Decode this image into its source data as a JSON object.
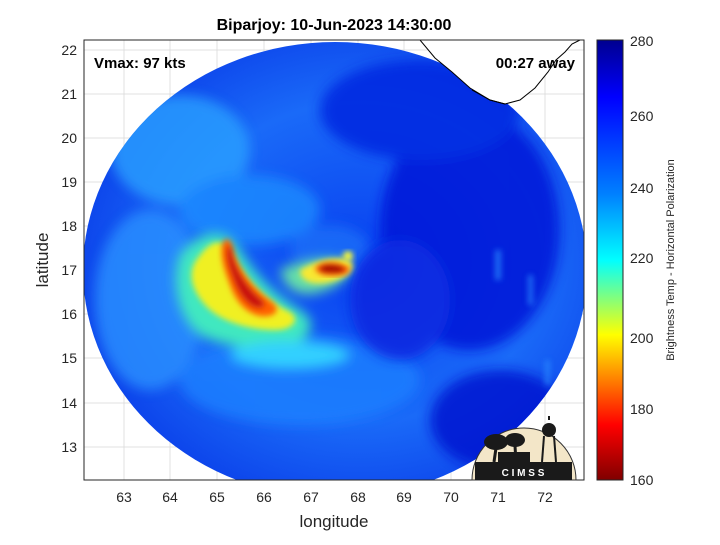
{
  "title": "Biparjoy: 10-Jun-2023 14:30:00",
  "vmax_label": "Vmax: 97 kts",
  "time_away_label": "00:27 away",
  "xaxis": {
    "label": "longitude",
    "ticks": [
      "63",
      "64",
      "65",
      "66",
      "67",
      "68",
      "69",
      "70",
      "71",
      "72"
    ]
  },
  "yaxis": {
    "label": "latitude",
    "ticks": [
      "13",
      "14",
      "15",
      "16",
      "17",
      "18",
      "19",
      "20",
      "21",
      "22"
    ]
  },
  "colorbar": {
    "label": "Brightness Temp - Horizontal Polarization",
    "ticks": [
      "160",
      "180",
      "200",
      "220",
      "240",
      "260",
      "280"
    ],
    "colors": [
      "#800000",
      "#ff0000",
      "#ffff00",
      "#00ffff",
      "#0080ff",
      "#0000ff",
      "#00008f"
    ]
  },
  "logo": {
    "text": "C I M S S"
  },
  "chart_data": {
    "type": "heatmap",
    "title": "Biparjoy: 10-Jun-2023 14:30:00",
    "xlabel": "longitude",
    "ylabel": "latitude",
    "xlim": [
      62.2,
      72.6
    ],
    "ylim": [
      12.2,
      22.3
    ],
    "clim": [
      160,
      280
    ],
    "colorbar_label": "Brightness Temp - Horizontal Polarization",
    "grid": true,
    "annotations": [
      "Vmax: 97 kts",
      "00:27 away"
    ],
    "storm_center_approx": {
      "lon": 67.5,
      "lat": 16.9
    },
    "cold_features_approx": [
      {
        "name": "eyewall",
        "lon": 67.5,
        "lat": 16.95,
        "min_temp": 165
      },
      {
        "name": "rainband",
        "lon": 65.6,
        "lat": 16.2,
        "min_temp": 165
      }
    ]
  }
}
